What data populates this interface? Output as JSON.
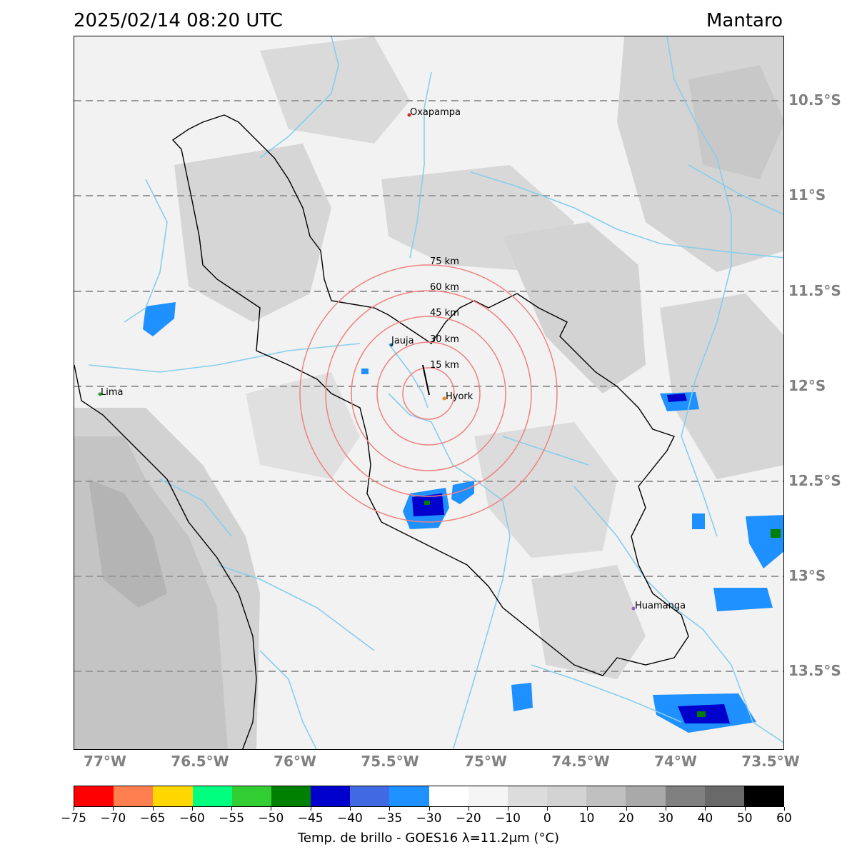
{
  "header": {
    "datetime": "2025/02/14 08:20 UTC",
    "region": "Mantaro"
  },
  "map": {
    "lon_labels": [
      "77°W",
      "76.5°W",
      "76°W",
      "75.5°W",
      "75°W",
      "74.5°W",
      "74°W",
      "73.5°W"
    ],
    "lat_labels": [
      "10.5°S",
      "11°S",
      "11.5°S",
      "12°S",
      "12.5°S",
      "13°S",
      "13.5°S"
    ],
    "cities": [
      {
        "name": "Oxapampa",
        "marker": "#d62728"
      },
      {
        "name": "Jauja",
        "marker": "#1f77b4"
      },
      {
        "name": "Hyork",
        "marker": "#ff7f0e"
      },
      {
        "name": "Lima",
        "marker": "#2ca02c"
      },
      {
        "name": "Huamanga",
        "marker": "#9467bd"
      }
    ],
    "range_rings": [
      "15 km",
      "30 km",
      "45 km",
      "60 km",
      "75 km"
    ],
    "colors": {
      "gridline": "#999999",
      "river": "#87ceeb",
      "ring": "#f08080",
      "basin": "#000000"
    }
  },
  "colorbar": {
    "colors": [
      "#ff0000",
      "#ff7f50",
      "#ffd700",
      "#00ff7f",
      "#32cd32",
      "#008000",
      "#0000cd",
      "#4169e1",
      "#1e90ff",
      "#ffffff",
      "#f5f5f5",
      "#dcdcdc",
      "#d3d3d3",
      "#c0c0c0",
      "#a9a9a9",
      "#808080",
      "#696969",
      "#000000"
    ],
    "ticks": [
      "−75",
      "−70",
      "−65",
      "−60",
      "−55",
      "−50",
      "−45",
      "−40",
      "−35",
      "−30",
      "−20",
      "−10",
      "0",
      "10",
      "20",
      "30",
      "40",
      "50",
      "60"
    ],
    "label": "Temp. de brillo - GOES16 λ=11.2μm (°C)"
  }
}
